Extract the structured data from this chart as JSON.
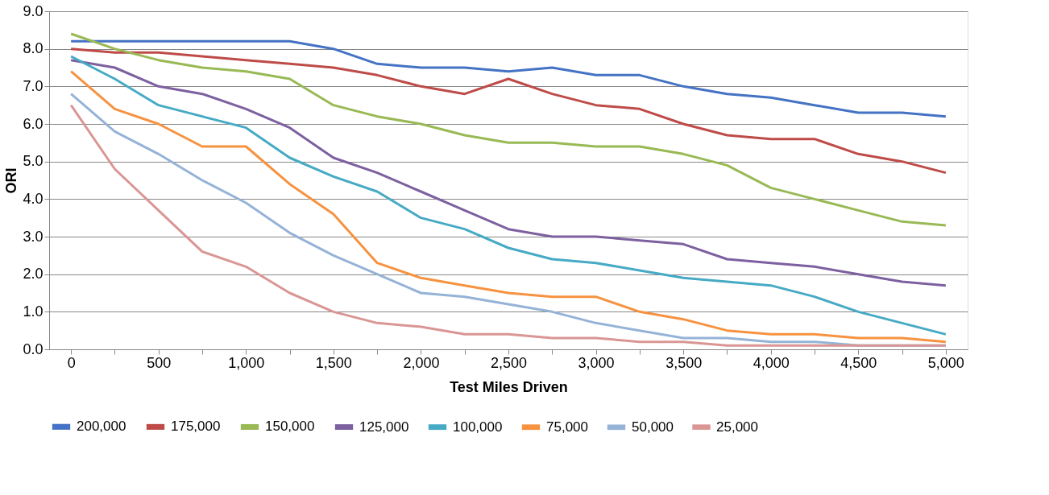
{
  "chart_data": {
    "type": "line",
    "xlabel": "Test Miles Driven",
    "ylabel": "ORI",
    "x": [
      0,
      250,
      500,
      750,
      1000,
      1250,
      1500,
      1750,
      2000,
      2250,
      2500,
      2750,
      3000,
      3250,
      3500,
      3750,
      4000,
      4250,
      4500,
      4750,
      5000
    ],
    "series": [
      {
        "name": "200,000",
        "color": "#4472c4",
        "values": [
          8.2,
          8.2,
          8.2,
          8.2,
          8.2,
          8.2,
          8.0,
          7.6,
          7.5,
          7.5,
          7.4,
          7.5,
          7.3,
          7.3,
          7.0,
          6.8,
          6.7,
          6.5,
          6.3,
          6.3,
          6.2
        ]
      },
      {
        "name": "175,000",
        "color": "#be4b48",
        "values": [
          8.0,
          7.9,
          7.9,
          7.8,
          7.7,
          7.6,
          7.5,
          7.3,
          7.0,
          6.8,
          7.2,
          6.8,
          6.5,
          6.4,
          6.0,
          5.7,
          5.6,
          5.6,
          5.2,
          5.0,
          4.7
        ]
      },
      {
        "name": "150,000",
        "color": "#98b954",
        "values": [
          8.4,
          8.0,
          7.7,
          7.5,
          7.4,
          7.2,
          6.5,
          6.2,
          6.0,
          5.7,
          5.5,
          5.5,
          5.4,
          5.4,
          5.2,
          4.9,
          4.3,
          4.0,
          3.7,
          3.4,
          3.3
        ]
      },
      {
        "name": "125,000",
        "color": "#7d60a0",
        "values": [
          7.7,
          7.5,
          7.0,
          6.8,
          6.4,
          5.9,
          5.1,
          4.7,
          4.2,
          3.7,
          3.2,
          3.0,
          3.0,
          2.9,
          2.8,
          2.4,
          2.3,
          2.2,
          2.0,
          1.8,
          1.7
        ]
      },
      {
        "name": "100,000",
        "color": "#46aac5",
        "values": [
          7.8,
          7.2,
          6.5,
          6.2,
          5.9,
          5.1,
          4.6,
          4.2,
          3.5,
          3.2,
          2.7,
          2.4,
          2.3,
          2.1,
          1.9,
          1.8,
          1.7,
          1.4,
          1.0,
          0.7,
          0.4
        ]
      },
      {
        "name": "75,000",
        "color": "#f69240",
        "values": [
          7.4,
          6.4,
          6.0,
          5.4,
          5.4,
          4.4,
          3.6,
          2.3,
          1.9,
          1.7,
          1.5,
          1.4,
          1.4,
          1.0,
          0.8,
          0.5,
          0.4,
          0.4,
          0.3,
          0.3,
          0.2
        ]
      },
      {
        "name": "50,000",
        "color": "#95b3d7",
        "values": [
          6.8,
          5.8,
          5.2,
          4.5,
          3.9,
          3.1,
          2.5,
          2.0,
          1.5,
          1.4,
          1.2,
          1.0,
          0.7,
          0.5,
          0.3,
          0.3,
          0.2,
          0.2,
          0.1,
          0.1,
          0.1
        ]
      },
      {
        "name": "25,000",
        "color": "#d99694",
        "values": [
          6.5,
          4.8,
          3.7,
          2.6,
          2.2,
          1.5,
          1.0,
          0.7,
          0.6,
          0.4,
          0.4,
          0.3,
          0.3,
          0.2,
          0.2,
          0.1,
          0.1,
          0.1,
          0.1,
          0.1,
          0.1
        ]
      }
    ],
    "xlim": [
      -125,
      5125
    ],
    "xticks": [
      {
        "value": 0,
        "label": "0"
      },
      {
        "value": 250,
        "label": null
      },
      {
        "value": 500,
        "label": "500"
      },
      {
        "value": 750,
        "label": null
      },
      {
        "value": 1000,
        "label": "1,000"
      },
      {
        "value": 1250,
        "label": null
      },
      {
        "value": 1500,
        "label": "1,500"
      },
      {
        "value": 1750,
        "label": null
      },
      {
        "value": 2000,
        "label": "2,000"
      },
      {
        "value": 2250,
        "label": null
      },
      {
        "value": 2500,
        "label": "2,500"
      },
      {
        "value": 2750,
        "label": null
      },
      {
        "value": 3000,
        "label": "3,000"
      },
      {
        "value": 3250,
        "label": null
      },
      {
        "value": 3500,
        "label": "3,500"
      },
      {
        "value": 3750,
        "label": null
      },
      {
        "value": 4000,
        "label": "4,000"
      },
      {
        "value": 4250,
        "label": null
      },
      {
        "value": 4500,
        "label": "4,500"
      },
      {
        "value": 4750,
        "label": null
      },
      {
        "value": 5000,
        "label": "5,000"
      }
    ],
    "ylim": [
      0,
      9
    ],
    "yticks": [
      {
        "value": 0,
        "label": "0.0"
      },
      {
        "value": 1,
        "label": "1.0"
      },
      {
        "value": 2,
        "label": "2.0"
      },
      {
        "value": 3,
        "label": "3.0"
      },
      {
        "value": 4,
        "label": "4.0"
      },
      {
        "value": 5,
        "label": "5.0"
      },
      {
        "value": 6,
        "label": "6.0"
      },
      {
        "value": 7,
        "label": "7.0"
      },
      {
        "value": 8,
        "label": "8.0"
      },
      {
        "value": 9,
        "label": "9.0"
      }
    ],
    "grid": "y",
    "legend": "bottom",
    "marker": "none",
    "line_style": "solid"
  }
}
